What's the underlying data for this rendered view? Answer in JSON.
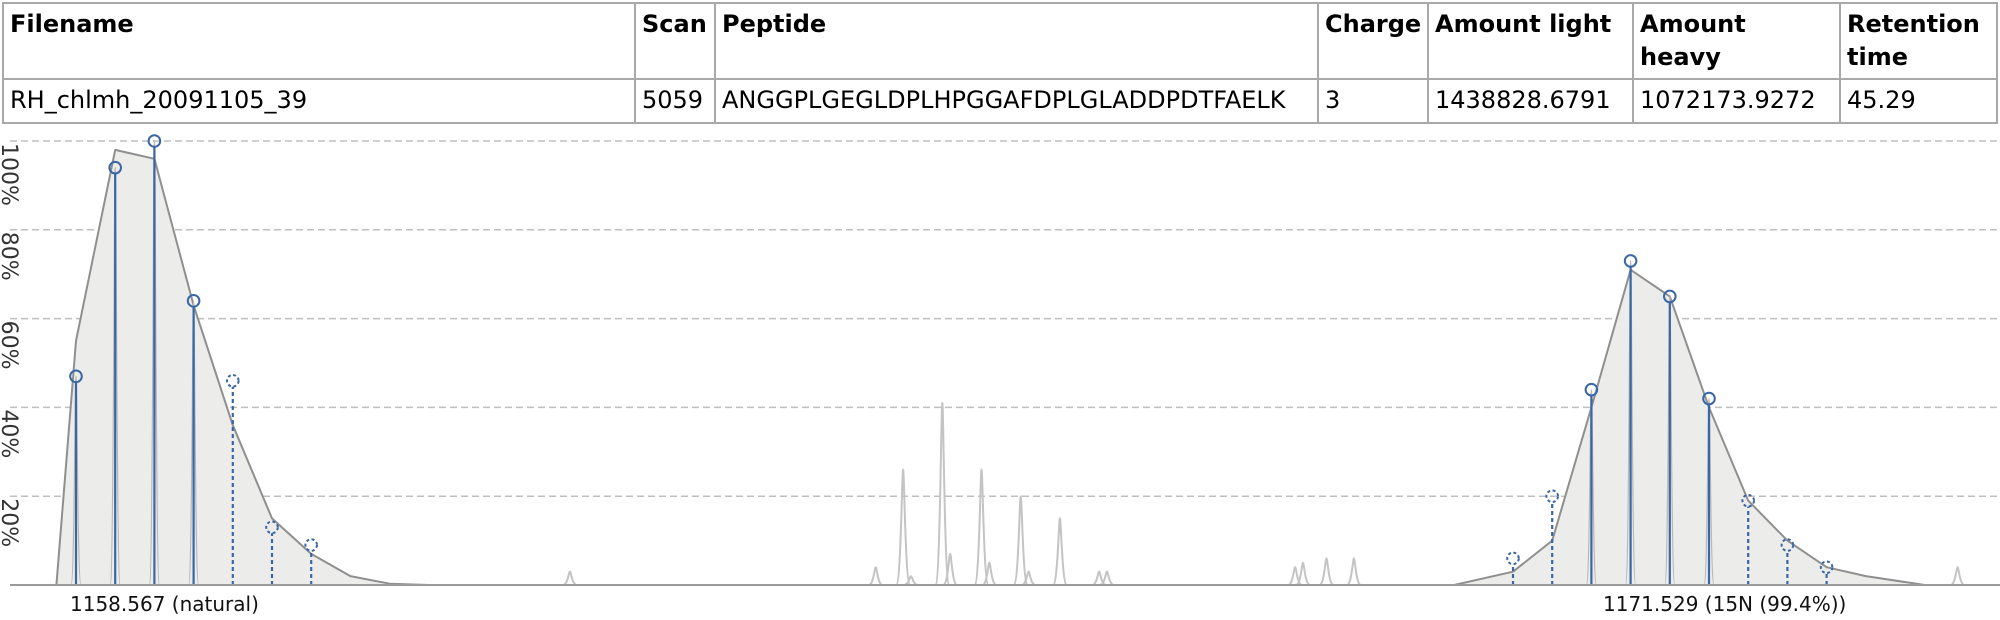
{
  "table": {
    "headers": [
      "Filename",
      "Scan",
      "Peptide",
      "Charge",
      "Amount light",
      "Amount heavy",
      "Retention time"
    ],
    "row": [
      "RH_chlmh_20091105_39",
      "5059",
      "ANGGPLGEGLDPLHPGGAFDPLGLADDPDTFAELK",
      "3",
      "1438828.6791",
      "1072173.9272",
      "45.29"
    ]
  },
  "chart_data": {
    "type": "line",
    "y_tick_labels": [
      "20%",
      "40%",
      "60%",
      "80%",
      "100%"
    ],
    "ylim": [
      0,
      100
    ],
    "grid": true,
    "colors": {
      "peak": "#3a66a5",
      "envelope": "#8f8f8f",
      "fill": "#ececea",
      "background_trace": "#c4c4c4",
      "grid": "#bfbfbf"
    },
    "groups": [
      {
        "label": "1158.567 (natural)",
        "mz_position": 0,
        "peaks": [
          {
            "index": 0,
            "value": 47,
            "matched": true
          },
          {
            "index": 1,
            "value": 94,
            "matched": true
          },
          {
            "index": 2,
            "value": 100,
            "matched": true
          },
          {
            "index": 3,
            "value": 64,
            "matched": true
          },
          {
            "index": 4,
            "value": 46,
            "matched": false
          },
          {
            "index": 5,
            "value": 13,
            "matched": false
          },
          {
            "index": 6,
            "value": 9,
            "matched": false
          }
        ],
        "envelope": [
          [
            -0.5,
            0
          ],
          [
            0,
            55
          ],
          [
            1,
            98
          ],
          [
            2,
            96
          ],
          [
            3,
            63
          ],
          [
            4,
            36
          ],
          [
            5,
            15
          ],
          [
            6,
            7
          ],
          [
            7,
            2
          ],
          [
            8,
            0.3
          ],
          [
            9,
            0
          ]
        ]
      },
      {
        "label": "1171.529 (15N (99.4%))",
        "mz_position": 1,
        "peaks": [
          {
            "index": 0,
            "value": 6,
            "matched": false
          },
          {
            "index": 1,
            "value": 20,
            "matched": false
          },
          {
            "index": 2,
            "value": 44,
            "matched": true
          },
          {
            "index": 3,
            "value": 73,
            "matched": true
          },
          {
            "index": 4,
            "value": 65,
            "matched": true
          },
          {
            "index": 5,
            "value": 42,
            "matched": true
          },
          {
            "index": 6,
            "value": 19,
            "matched": false
          },
          {
            "index": 7,
            "value": 9,
            "matched": false
          },
          {
            "index": 8,
            "value": 4,
            "matched": false
          }
        ],
        "envelope": [
          [
            -1.5,
            0
          ],
          [
            0,
            3
          ],
          [
            1,
            10
          ],
          [
            2,
            40
          ],
          [
            3,
            71
          ],
          [
            4,
            65
          ],
          [
            5,
            40
          ],
          [
            6,
            19
          ],
          [
            7,
            10
          ],
          [
            8,
            4
          ],
          [
            9,
            2
          ],
          [
            10.5,
            0
          ]
        ]
      }
    ],
    "background_peaks": [
      {
        "pos": 12.6,
        "value": 3
      },
      {
        "pos": 20.4,
        "value": 4
      },
      {
        "pos": 21.1,
        "value": 26
      },
      {
        "pos": 21.3,
        "value": 2
      },
      {
        "pos": 22.1,
        "value": 41
      },
      {
        "pos": 22.3,
        "value": 7
      },
      {
        "pos": 23.1,
        "value": 26
      },
      {
        "pos": 23.3,
        "value": 5
      },
      {
        "pos": 24.1,
        "value": 20
      },
      {
        "pos": 24.3,
        "value": 3
      },
      {
        "pos": 25.1,
        "value": 15
      },
      {
        "pos": 26.1,
        "value": 3
      },
      {
        "pos": 26.3,
        "value": 3
      },
      {
        "pos": 31.1,
        "value": 4
      },
      {
        "pos": 31.3,
        "value": 5
      },
      {
        "pos": 31.9,
        "value": 6
      },
      {
        "pos": 32.6,
        "value": 6
      },
      {
        "pos": 48.0,
        "value": 4
      }
    ]
  }
}
